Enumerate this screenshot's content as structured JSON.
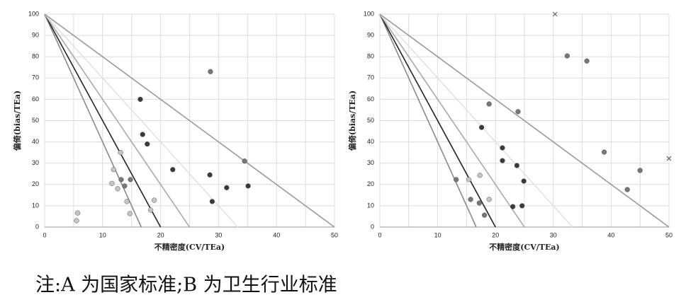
{
  "chart_data": [
    {
      "type": "scatter",
      "xlabel": "不精密度(CV/TEa)",
      "ylabel": "偏倚(bias/TEa)",
      "xlim": [
        0,
        50
      ],
      "ylim": [
        0,
        100
      ],
      "xticks": [
        0,
        10,
        20,
        30,
        40,
        50
      ],
      "yticks": [
        0,
        10,
        20,
        30,
        40,
        50,
        60,
        70,
        80,
        90,
        100
      ],
      "grid": true,
      "x_gridlines": [
        5,
        15,
        25,
        35,
        45
      ],
      "reference_lines": [
        {
          "color": "#8a8a8a",
          "x": [
            0,
            16.67
          ],
          "values": [
            100,
            0
          ]
        },
        {
          "color": "#222222",
          "x": [
            0,
            20
          ],
          "values": [
            100,
            0
          ]
        },
        {
          "color": "#aaaaaa",
          "x": [
            0,
            25
          ],
          "values": [
            100,
            0
          ]
        },
        {
          "color": "#e2e2e2",
          "x": [
            0,
            33.33
          ],
          "values": [
            100,
            0
          ]
        },
        {
          "color": "#999999",
          "x": [
            0,
            50
          ],
          "values": [
            100,
            0
          ]
        }
      ],
      "series": [
        {
          "color": "#3a3a3a",
          "marker": "circle",
          "x": [
            16.5,
            16.9,
            17.7,
            22.1,
            28.5,
            28.9,
            31.4,
            35.1
          ],
          "values": [
            60,
            43.5,
            39,
            27,
            24.5,
            12,
            18.5,
            19.3
          ]
        },
        {
          "color": "#777777",
          "marker": "circle",
          "x": [
            28.6,
            34.5,
            14.8,
            13.2,
            13.8
          ],
          "values": [
            73,
            31,
            22.3,
            22.3,
            19.3
          ]
        },
        {
          "color": "#c4c4c4",
          "marker": "circle",
          "x": [
            13.1,
            11.9,
            11.6,
            12.6,
            14.2,
            14.7,
            5.7,
            5.5,
            18.9,
            18.3
          ],
          "values": [
            35,
            27,
            20.5,
            18,
            12,
            6.3,
            6.6,
            3,
            12.6,
            8
          ]
        }
      ]
    },
    {
      "type": "scatter",
      "xlabel": "不精密度(CV/TEa)",
      "ylabel": "偏倚(bias/TEa)",
      "xlim": [
        0,
        50
      ],
      "ylim": [
        0,
        100
      ],
      "xticks": [
        0,
        10,
        20,
        30,
        40,
        50
      ],
      "yticks": [
        0,
        10,
        20,
        30,
        40,
        50,
        60,
        70,
        80,
        90,
        100
      ],
      "grid": true,
      "x_gridlines": [
        5,
        15,
        25,
        35,
        45
      ],
      "reference_lines": [
        {
          "color": "#8a8a8a",
          "x": [
            0,
            16.67
          ],
          "values": [
            100,
            0
          ]
        },
        {
          "color": "#222222",
          "x": [
            0,
            20
          ],
          "values": [
            100,
            0
          ]
        },
        {
          "color": "#aaaaaa",
          "x": [
            0,
            25
          ],
          "values": [
            100,
            0
          ]
        },
        {
          "color": "#e2e2e2",
          "x": [
            0,
            33.33
          ],
          "values": [
            100,
            0
          ]
        },
        {
          "color": "#999999",
          "x": [
            0,
            50
          ],
          "values": [
            100,
            0
          ]
        }
      ],
      "series": [
        {
          "color": "#3a3a3a",
          "marker": "circle",
          "x": [
            17.6,
            21.2,
            21.2,
            23.7,
            24.9,
            24.6,
            23
          ],
          "values": [
            46.8,
            37.2,
            31.2,
            28.9,
            21.6,
            10,
            9.6
          ]
        },
        {
          "color": "#777777",
          "marker": "circle",
          "x": [
            32.4,
            35.8,
            38.8,
            45,
            42.8,
            18.9,
            23.9,
            18.1,
            17.2,
            15.7,
            13.2
          ],
          "values": [
            80.4,
            78,
            35.2,
            26.6,
            17.6,
            57.8,
            54.2,
            5.6,
            11.3,
            13,
            22.3
          ]
        },
        {
          "color": "#c4c4c4",
          "marker": "circle",
          "x": [
            17.3,
            15.4,
            18.9
          ],
          "values": [
            24.3,
            22.3,
            13
          ]
        },
        {
          "color": "#666666",
          "marker": "x",
          "x": [
            30.3,
            50
          ],
          "values": [
            100,
            32.2
          ]
        }
      ]
    }
  ],
  "note": "注:A 为国家标准;B 为卫生行业标准"
}
